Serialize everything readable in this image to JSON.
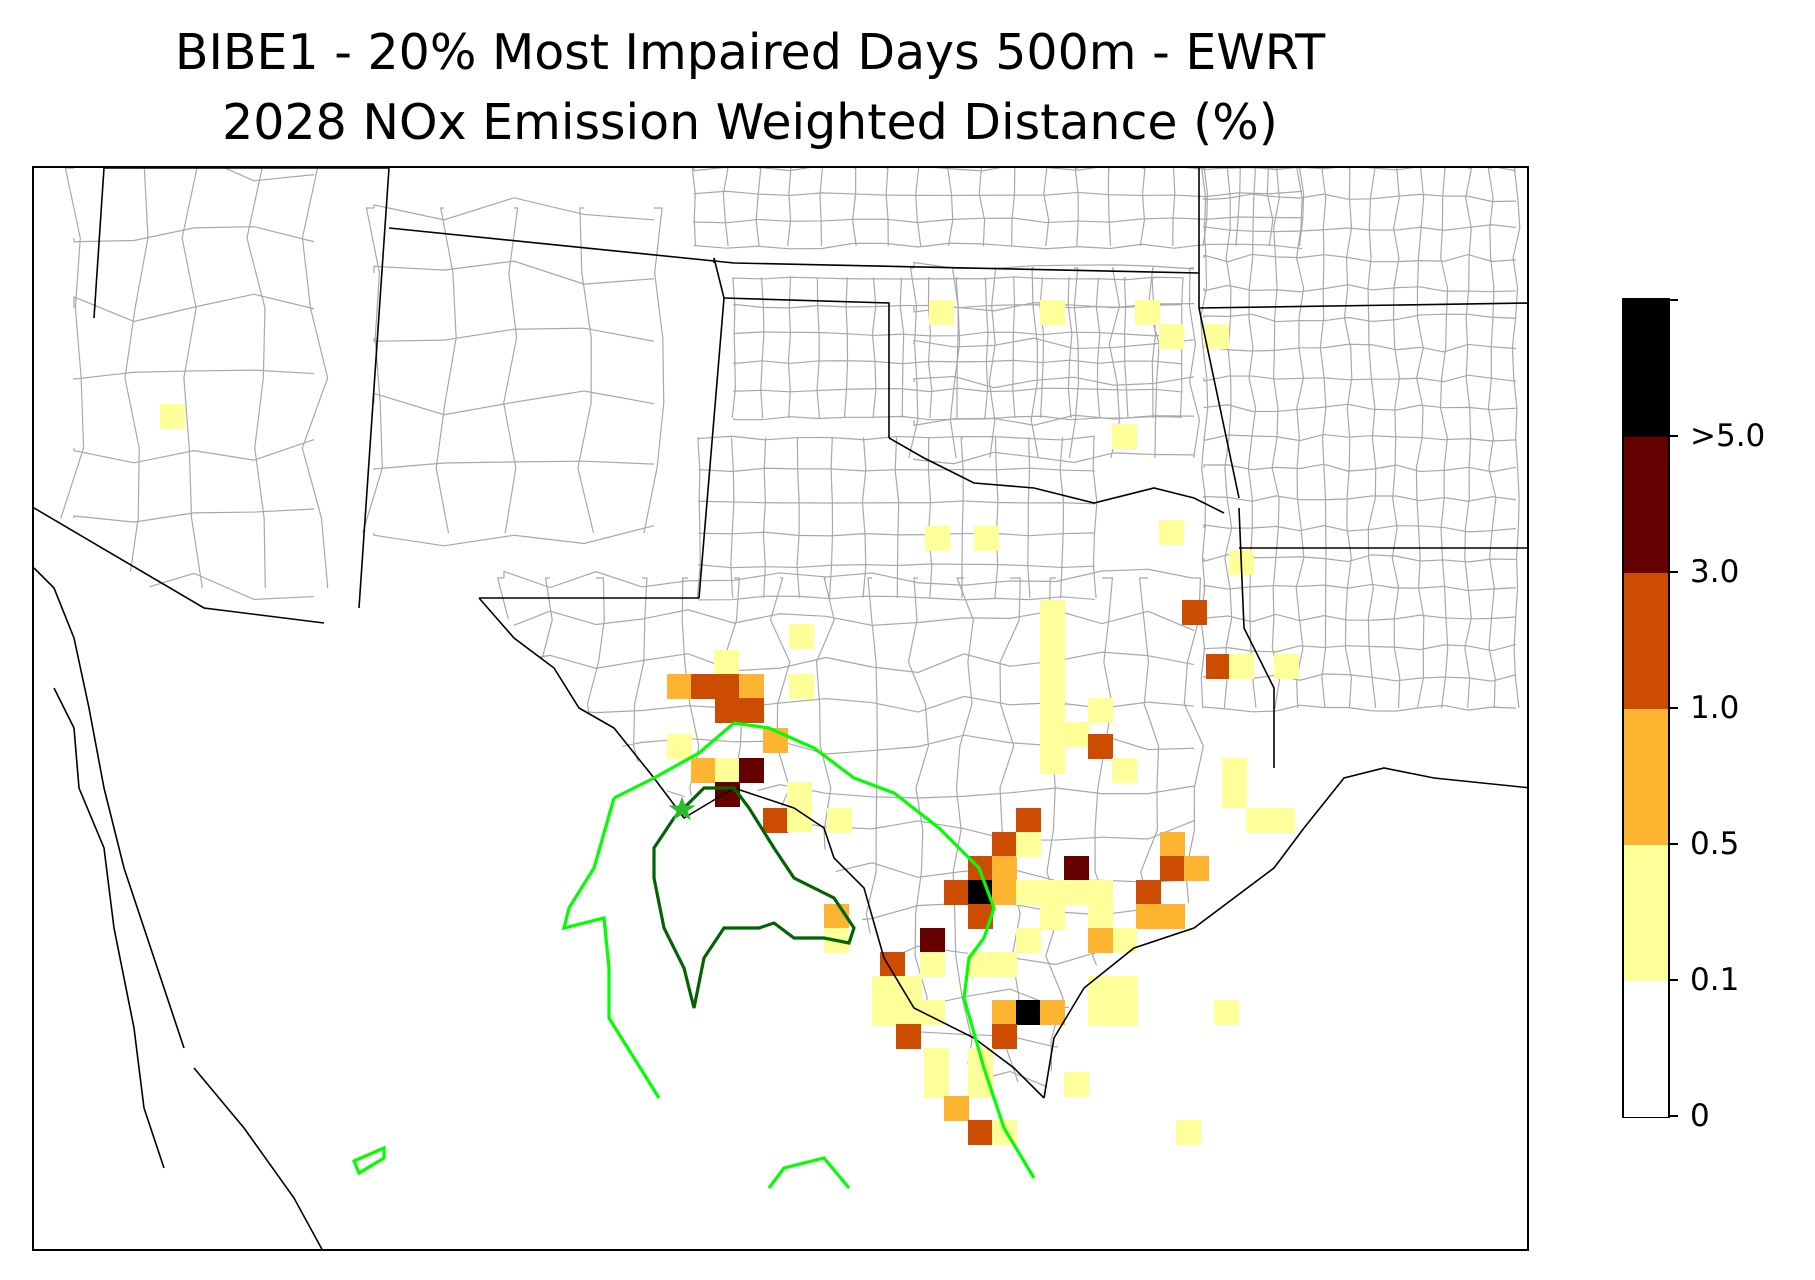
{
  "title": {
    "line1": "BIBE1 - 20% Most Impaired Days 500m - EWRT",
    "line2": "2028 NOx Emission Weighted Distance (%)"
  },
  "colorbar": {
    "bins": [
      {
        "from": 0,
        "to": 0.1,
        "color": "#ffffff"
      },
      {
        "from": 0.1,
        "to": 0.5,
        "color": "#ffff99"
      },
      {
        "from": 0.5,
        "to": 1.0,
        "color": "#fdb431"
      },
      {
        "from": 1.0,
        "to": 3.0,
        "color": "#cc4c02"
      },
      {
        "from": 3.0,
        "to": 5.0,
        "color": "#660000"
      },
      {
        "from": 5.0,
        "to": null,
        "color": "#000000"
      }
    ],
    "tick_labels": [
      "0",
      "0.1",
      "0.5",
      "1.0",
      "3.0",
      ">5.0"
    ]
  },
  "site_marker": {
    "name": "BIBE1",
    "symbol": "star",
    "color": "#2dbb2d"
  },
  "contour_colors": {
    "outer": "#00ff00",
    "inner": "#006400"
  },
  "boundary_colors": {
    "state": "#000000",
    "county": "#a8a8a8"
  }
}
